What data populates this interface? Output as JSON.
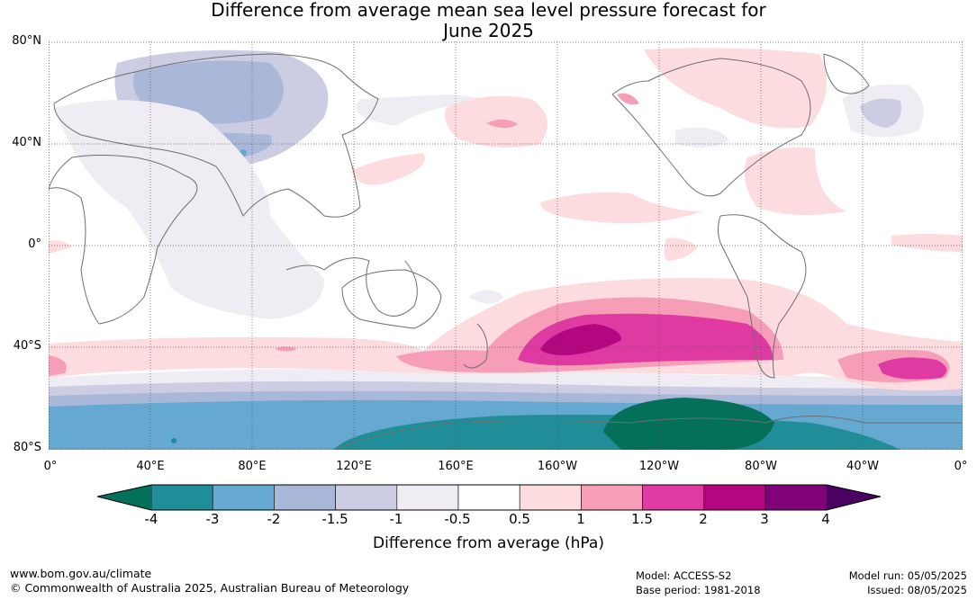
{
  "title_line1": "Difference from average mean sea level pressure forecast for",
  "title_line2": "June 2025",
  "lat_labels": [
    "80°N",
    "40°N",
    "0°",
    "40°S",
    "80°S"
  ],
  "lon_labels": [
    "0°",
    "40°E",
    "80°E",
    "120°E",
    "160°E",
    "160°W",
    "120°W",
    "80°W",
    "40°W",
    "0°"
  ],
  "colorbar": {
    "ticks": [
      "-4",
      "-3",
      "-2",
      "-1.5",
      "-1",
      "-0.5",
      "0.5",
      "1",
      "1.5",
      "2",
      "3",
      "4"
    ],
    "under_color": "#05705a",
    "over_color": "#4a0060",
    "bin_colors": [
      "#1f8e98",
      "#65a8d0",
      "#a9b8d8",
      "#cccde3",
      "#efedf3",
      "#ffffff",
      "#fddcdf",
      "#f69db8",
      "#de3aa2",
      "#b3067f",
      "#7f027a"
    ],
    "label": "Difference from average (hPa)"
  },
  "footer": {
    "website": "www.bom.gov.au/climate",
    "copyright": "© Commonwealth of Australia 2025, Australian Bureau of Meteorology",
    "model": "Model: ACCESS-S2",
    "base_period": "Base period: 1981-2018",
    "model_run": "Model run: 05/05/2025",
    "issued": "Issued: 08/05/2025"
  }
}
